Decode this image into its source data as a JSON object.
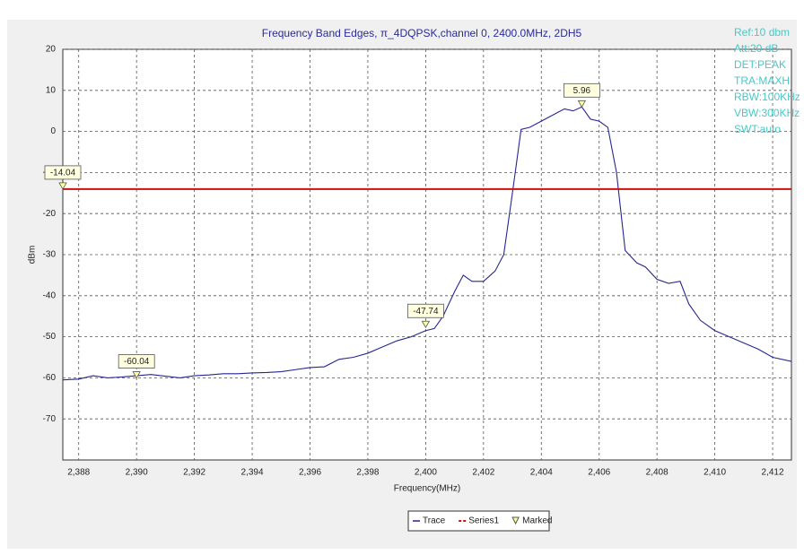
{
  "chart_data": {
    "type": "line",
    "title": "Frequency Band Edges, π_4DQPSK,channel 0, 2400.0MHz, 2DH5",
    "x_label": "Frequency(MHz)",
    "y_label": "dBm",
    "annotations": [
      "Ref:10 dbm",
      "Att:20 dB",
      "DET:PEAK",
      "TRA:MAXH",
      "RBW:100KHz",
      "VBW:300KHz",
      "SWT:auto"
    ],
    "xlim": [
      2387.45,
      2412.65
    ],
    "ylim": [
      -80,
      20
    ],
    "xticks": [
      {
        "value": 2388,
        "label": "2,388"
      },
      {
        "value": 2390,
        "label": "2,390"
      },
      {
        "value": 2392,
        "label": "2,392"
      },
      {
        "value": 2394,
        "label": "2,394"
      },
      {
        "value": 2396,
        "label": "2,396"
      },
      {
        "value": 2398,
        "label": "2,398"
      },
      {
        "value": 2400,
        "label": "2,400"
      },
      {
        "value": 2402,
        "label": "2,402"
      },
      {
        "value": 2404,
        "label": "2,404"
      },
      {
        "value": 2406,
        "label": "2,406"
      },
      {
        "value": 2408,
        "label": "2,408"
      },
      {
        "value": 2410,
        "label": "2,410"
      },
      {
        "value": 2412,
        "label": "2,412"
      }
    ],
    "yticks": [
      -70,
      -60,
      -50,
      -40,
      -30,
      -20,
      -10,
      0,
      10,
      20
    ],
    "grid": true,
    "series": [
      {
        "name": "Trace",
        "style": "line",
        "color": "#26268f",
        "x": [
          2387.45,
          2388,
          2388.5,
          2389,
          2389.5,
          2390,
          2390.5,
          2391,
          2391.5,
          2392,
          2392.5,
          2393,
          2393.5,
          2394,
          2394.5,
          2395,
          2395.5,
          2396,
          2396.5,
          2397,
          2397.5,
          2398,
          2398.5,
          2399,
          2399.5,
          2400,
          2400.3,
          2400.6,
          2401,
          2401.3,
          2401.6,
          2402,
          2402.4,
          2402.7,
          2403,
          2403.3,
          2403.6,
          2404,
          2404.4,
          2404.8,
          2405.1,
          2405.4,
          2405.7,
          2406,
          2406.3,
          2406.6,
          2406.9,
          2407.3,
          2407.6,
          2408,
          2408.4,
          2408.8,
          2409.1,
          2409.5,
          2410,
          2410.5,
          2411,
          2411.5,
          2412,
          2412.65
        ],
        "values": [
          -60.5,
          -60.3,
          -59.5,
          -60,
          -59.8,
          -59.5,
          -59.2,
          -59.6,
          -60,
          -59.5,
          -59.3,
          -59,
          -59,
          -58.8,
          -58.7,
          -58.5,
          -58,
          -57.5,
          -57.3,
          -55.5,
          -55,
          -54,
          -52.5,
          -51,
          -50,
          -48.5,
          -48,
          -45,
          -39,
          -35,
          -36.5,
          -36.5,
          -34,
          -30,
          -15,
          0.5,
          1,
          2.5,
          4,
          5.5,
          5,
          5.96,
          3,
          2.5,
          1,
          -10,
          -29,
          -32,
          -33,
          -36,
          -37,
          -36.5,
          -42,
          -46,
          -48.5,
          -50,
          -51.5,
          -53,
          -55,
          -56
        ]
      },
      {
        "name": "Series1",
        "style": "hline",
        "color": "#cc1111",
        "values": [
          -14.04
        ]
      },
      {
        "name": "Marked",
        "style": "marker",
        "color": "#ffff99",
        "x": [
          2387.45,
          2390,
          2400,
          2405.4
        ],
        "values": [
          -14.04,
          -60.04,
          -47.74,
          5.96
        ]
      }
    ]
  }
}
